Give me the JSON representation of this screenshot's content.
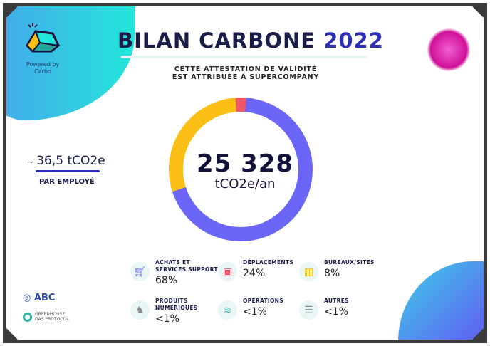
{
  "brand": {
    "powered_by": "Powered by",
    "name": "Carbo"
  },
  "title": {
    "main": "BILAN CARBONE",
    "year": "2022"
  },
  "subtitle": {
    "line1": "CETTE ATTESTATION DE VALIDITÉ",
    "line2": "EST ATTRIBUÉE À SUPERCOMPANY"
  },
  "per_employee": {
    "approx": "~",
    "value": "36,5 tCO2e",
    "label": "PAR EMPLOYÉ"
  },
  "total": {
    "value": "25 328",
    "unit": "tCO2e/an"
  },
  "donut": {
    "colors": {
      "purple": "#6b66f7",
      "yellow": "#fbbf16",
      "red": "#f2566a"
    }
  },
  "categories": [
    {
      "label": "ACHATS ET SERVICES SUPPORT",
      "value": "68%",
      "icon": "cart-icon",
      "color": "#6b66f7"
    },
    {
      "label": "DÉPLACEMENTS",
      "value": "24%",
      "icon": "bus-icon",
      "color": "#f2566a"
    },
    {
      "label": "BUREAUX/SITES",
      "value": "8%",
      "icon": "building-icon",
      "color": "#fbbf16"
    },
    {
      "label": "PRODUITS NUMÉRIQUES",
      "value": "<1%",
      "icon": "unicorn-icon",
      "color": "#888888"
    },
    {
      "label": "OPÉRATIONS",
      "value": "<1%",
      "icon": "layers-icon",
      "color": "#30b5a5"
    },
    {
      "label": "AUTRES",
      "value": "<1%",
      "icon": "list-icon",
      "color": "#888888"
    }
  ],
  "partners": {
    "abc": "ABC",
    "ghg_line1": "GREENHOUSE",
    "ghg_line2": "GAS PROTOCOL"
  }
}
